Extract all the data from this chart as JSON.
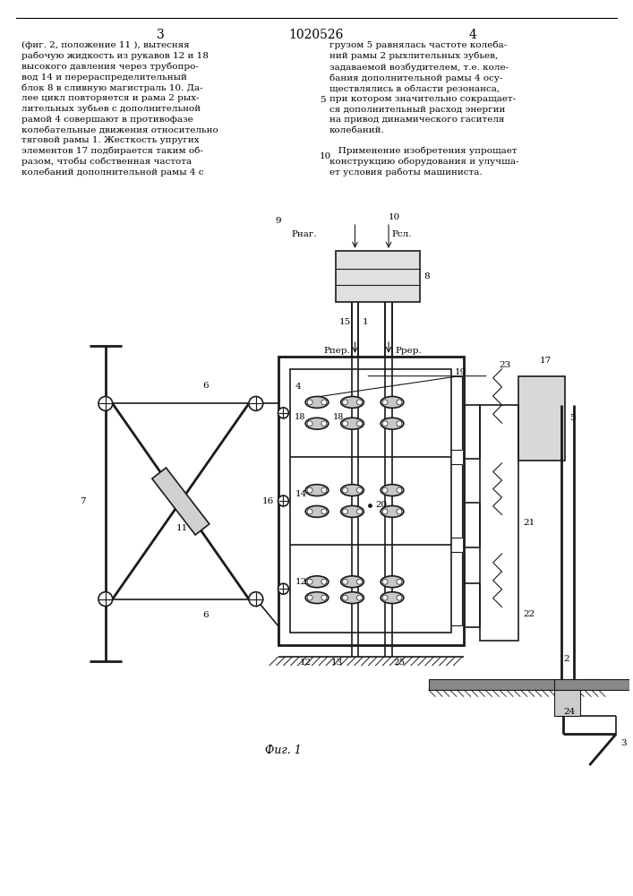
{
  "page_number_left": "3",
  "patent_number": "1020526",
  "page_number_right": "4",
  "text_left": "(фиг. 2, положение 11 ), вытесняя\nрабочую жидкость из рукавов 12 и 18\nвысокого давления через трубопро-\nвод 14 и перераспределительный\nблок 8 в сливную магистраль 10. Да-\nлее цикл повторяется и рама 2 рых-\nлительных зубьев с дополнительной\nрамой 4 совершают в противофазе\nколебательные движения относительно\nтяговой рамы 1. Жесткость упругих\nэлементов 17 подбирается таким об-\nразом, чтобы собственная частота\nколебаний дополнительной рамы 4 с",
  "text_right": "грузом 5 равнялась частоте колеба-\nний рамы 2 рыхлительных зубьев,\nзадаваемой возбудителем, т.е. коле-\nбания дополнительной рамы 4 осу-\nществлялись в области резонанса,\nпри котором значительно сокращает-\nся дополнительный расход энергии\nна привод динамического гасителя\nколебаний.\n\n   Применение изобретения упрощает\nконструкцию оборудования и улучша-\nет условия работы машиниста.",
  "line_number_5": "5",
  "line_number_10": "10",
  "fig_label": "Фиг. 1",
  "bg_color": "#ffffff",
  "text_color": "#000000",
  "drawing_color": "#1a1a1a"
}
